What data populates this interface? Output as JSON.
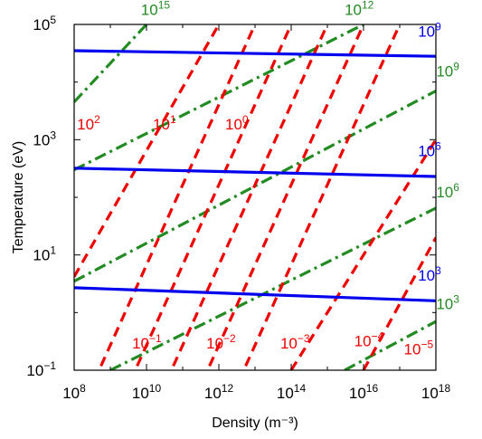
{
  "chart_data": {
    "type": "line",
    "title": "",
    "xlabel": "Density (m⁻³)",
    "ylabel": "Temperature (eV)",
    "xscale": "log",
    "yscale": "log",
    "xlim": [
      100000000.0,
      1e+18
    ],
    "ylim": [
      0.1,
      100000
    ],
    "x_ticks": [
      {
        "base": "10",
        "exp": "8",
        "value": 100000000.0
      },
      {
        "base": "10",
        "exp": "10",
        "value": 10000000000.0
      },
      {
        "base": "10",
        "exp": "12",
        "value": 1000000000000.0
      },
      {
        "base": "10",
        "exp": "14",
        "value": 100000000000000.0
      },
      {
        "base": "10",
        "exp": "16",
        "value": 1e+16
      },
      {
        "base": "10",
        "exp": "18",
        "value": 1e+18
      }
    ],
    "y_ticks": [
      {
        "base": "10",
        "exp": "−1",
        "value": 0.1
      },
      {
        "base": "10",
        "exp": "1",
        "value": 10
      },
      {
        "base": "10",
        "exp": "3",
        "value": 1000
      },
      {
        "base": "10",
        "exp": "5",
        "value": 100000
      }
    ],
    "grid": false,
    "colors": {
      "blue": "#0000ee",
      "red": "#ee0000",
      "green": "#228b22"
    },
    "blue_series": [
      {
        "base": "10",
        "exp": "9",
        "points": [
          [
            100000000.0,
            35000
          ],
          [
            1e+18,
            28000
          ]
        ],
        "label_at": [
          3.2e+17,
          61000
        ]
      },
      {
        "base": "10",
        "exp": "6",
        "points": [
          [
            100000000.0,
            320
          ],
          [
            1e+18,
            230
          ]
        ],
        "label_at": [
          3.2e+17,
          520
        ]
      },
      {
        "base": "10",
        "exp": "3",
        "points": [
          [
            100000000.0,
            2.7
          ],
          [
            1e+18,
            1.6
          ]
        ],
        "label_at": [
          3.2e+17,
          3.6
        ]
      }
    ],
    "red_series": [
      {
        "base": "10",
        "exp": "2",
        "points": [
          [
            100000000.0,
            4.2
          ],
          [
            1000000000000.0,
            100000
          ]
        ],
        "label_at": [
          120000000.0,
          1500
        ]
      },
      {
        "base": "10",
        "exp": "1",
        "points": [
          [
            100000000.0,
            0.011
          ],
          [
            10000000000000.0,
            100000
          ]
        ],
        "label_at": [
          15000000000.0,
          1500
        ]
      },
      {
        "base": "10",
        "exp": "0",
        "points": [
          [
            1000000000.0,
            0.011
          ],
          [
            100000000000000.0,
            100000
          ]
        ],
        "label_at": [
          1500000000000.0,
          1500
        ]
      },
      {
        "base": "10",
        "exp": "−1",
        "points": [
          [
            10000000000.0,
            0.011
          ],
          [
            1000000000000000.0,
            100000
          ]
        ],
        "label_at": [
          4000000000.0,
          0.24
        ]
      },
      {
        "base": "10",
        "exp": "−2",
        "points": [
          [
            100000000000.0,
            0.011
          ],
          [
            1e+16,
            100000
          ]
        ],
        "label_at": [
          450000000000.0,
          0.24
        ]
      },
      {
        "base": "10",
        "exp": "−3",
        "points": [
          [
            1000000000000.0,
            0.011
          ],
          [
            1e+17,
            100000
          ]
        ],
        "label_at": [
          50000000000000.0,
          0.24
        ]
      },
      {
        "base": "10",
        "exp": "−4",
        "points": [
          [
            100000000000000.0,
            0.1
          ],
          [
            1e+18,
            1000
          ]
        ],
        "label_at": [
          5500000000000000.0,
          0.26
        ]
      },
      {
        "base": "10",
        "exp": "−5",
        "points": [
          [
            1e+16,
            0.1
          ],
          [
            1e+18,
            20
          ]
        ],
        "label_at": [
          1.3e+17,
          0.19
        ]
      }
    ],
    "green_series": [
      {
        "base": "10",
        "exp": "15",
        "points": [
          [
            100000000.0,
            4500
          ],
          [
            10000000000.0,
            100000
          ]
        ],
        "label_at": [
          7000000000.0,
          145000
        ]
      },
      {
        "base": "10",
        "exp": "12",
        "points": [
          [
            100000000.0,
            300
          ],
          [
            1e+16,
            100000
          ]
        ],
        "label_at": [
          3000000000000000.0,
          145000
        ]
      },
      {
        "base": "10",
        "exp": "9",
        "points": [
          [
            100000000.0,
            3.5
          ],
          [
            1e+18,
            7000
          ]
        ],
        "label_at": [
          1.02e+18,
          12500
        ]
      },
      {
        "base": "10",
        "exp": "6",
        "points": [
          [
            1000000000.0,
            0.1
          ],
          [
            1e+18,
            65
          ]
        ],
        "label_at": [
          1.02e+18,
          100
        ]
      },
      {
        "base": "10",
        "exp": "3",
        "points": [
          [
            3000000000000000.0,
            0.1
          ],
          [
            1e+18,
            0.7
          ]
        ],
        "label_at": [
          1.02e+18,
          1.15
        ]
      }
    ]
  }
}
